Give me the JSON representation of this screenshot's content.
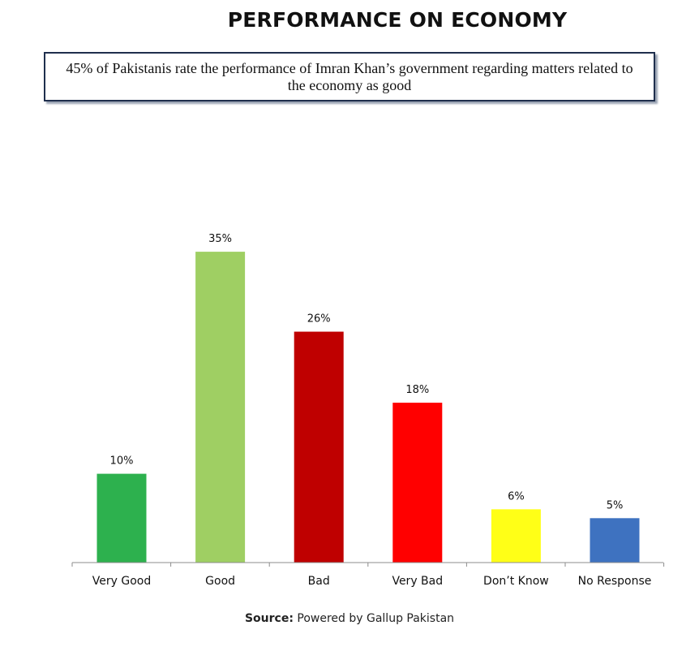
{
  "page": {
    "title": "PERFORMANCE ON ECONOMY",
    "summary": "45% of Pakistanis rate the performance of Imran Khan’s government regarding matters related to the economy as good",
    "source_label": "Source:",
    "source_text": "Powered by Gallup Pakistan"
  },
  "chart_data": {
    "type": "bar",
    "title": "PERFORMANCE ON ECONOMY",
    "xlabel": "",
    "ylabel": "",
    "ylim": [
      0,
      45
    ],
    "grid": false,
    "legend": "none",
    "categories": [
      "Very Good",
      "Good",
      "Bad",
      "Very Bad",
      "Don’t Know",
      "No Response"
    ],
    "values": [
      10,
      35,
      26,
      18,
      6,
      5
    ],
    "data_labels": [
      "10%",
      "35%",
      "26%",
      "18%",
      "6%",
      "5%"
    ],
    "colors": [
      "#2db14e",
      "#9fcf63",
      "#bf0000",
      "#ff0000",
      "#ffff17",
      "#3e72c0"
    ]
  }
}
